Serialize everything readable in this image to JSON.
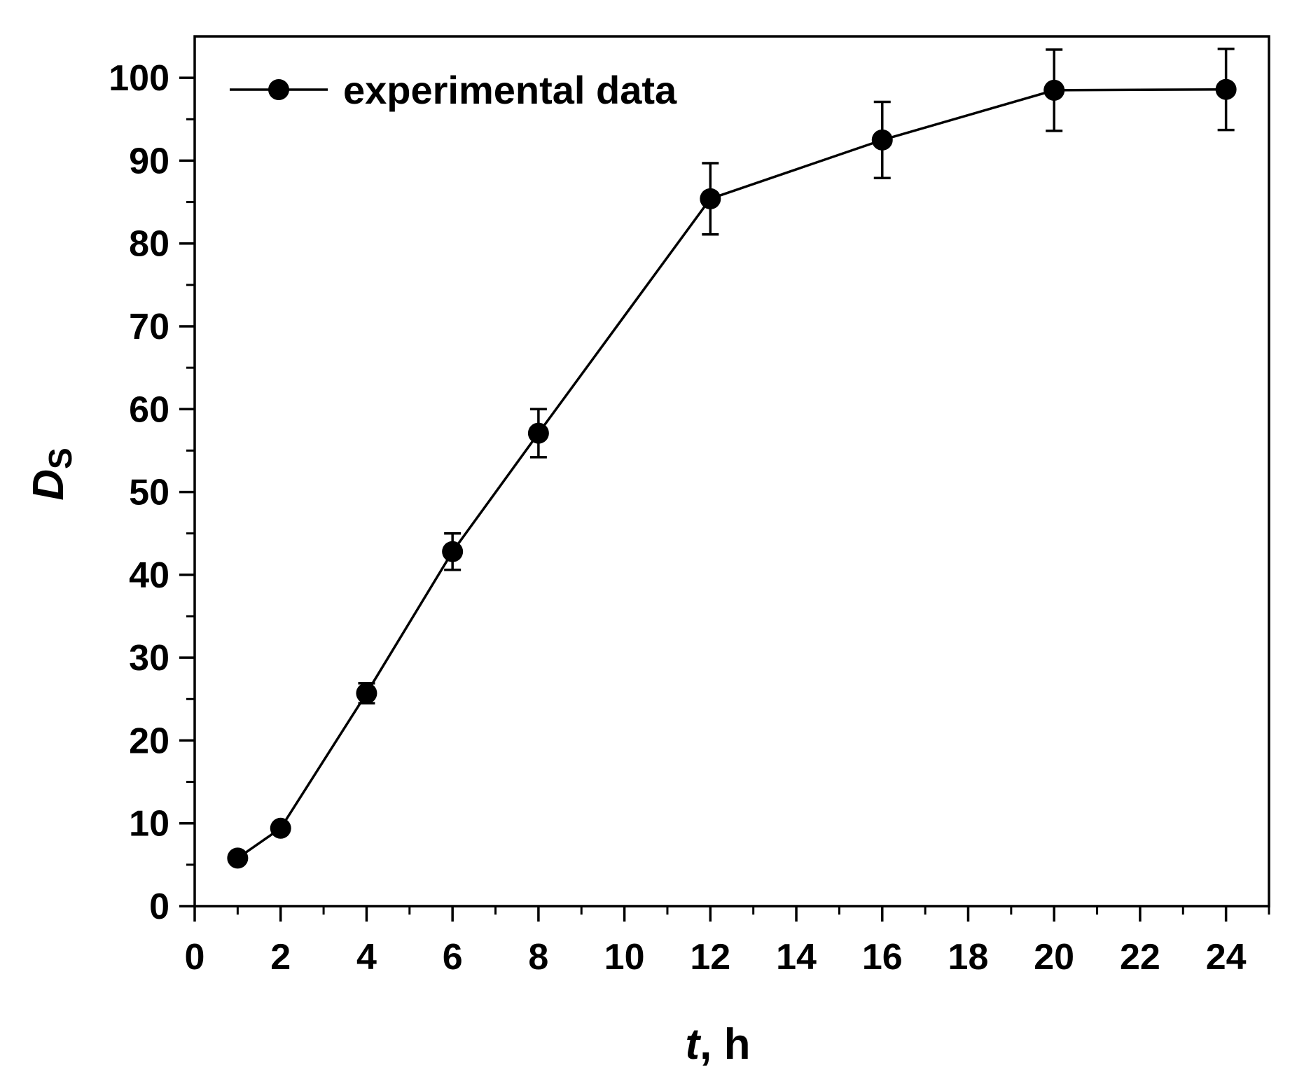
{
  "chart_data": {
    "type": "line",
    "title": "",
    "xlabel": {
      "italic_part": "t",
      "rest": ", h"
    },
    "ylabel": {
      "main": "D",
      "subscript": "S"
    },
    "xlim": [
      0,
      25
    ],
    "ylim": [
      0,
      105
    ],
    "x_ticks": [
      0,
      2,
      4,
      6,
      8,
      10,
      12,
      14,
      16,
      18,
      20,
      22,
      24
    ],
    "x_tick_labels": [
      "0",
      "2",
      "4",
      "6",
      "8",
      "10",
      "12",
      "14",
      "16",
      "18",
      "20",
      "22",
      "24"
    ],
    "x_minor_ticks": [
      1,
      3,
      5,
      7,
      9,
      11,
      13,
      15,
      17,
      19,
      21,
      23,
      25
    ],
    "y_ticks": [
      0,
      10,
      20,
      30,
      40,
      50,
      60,
      70,
      80,
      90,
      100
    ],
    "y_tick_labels": [
      "0",
      "10",
      "20",
      "30",
      "40",
      "50",
      "60",
      "70",
      "80",
      "90",
      "100"
    ],
    "y_minor_ticks": [
      5,
      15,
      25,
      35,
      45,
      55,
      65,
      75,
      85,
      95
    ],
    "grid": false,
    "legend": {
      "position": "top-left",
      "entries": [
        "experimental data"
      ]
    },
    "series": [
      {
        "name": "experimental data",
        "color": "#000000",
        "marker": "filled-circle",
        "x": [
          1,
          2,
          4,
          6,
          8,
          12,
          16,
          20,
          24
        ],
        "y": [
          5.8,
          9.4,
          25.7,
          42.8,
          57.1,
          85.4,
          92.5,
          98.5,
          98.6
        ],
        "error": [
          0,
          0,
          1.2,
          2.2,
          2.9,
          4.3,
          4.6,
          4.9,
          4.9
        ]
      }
    ]
  }
}
